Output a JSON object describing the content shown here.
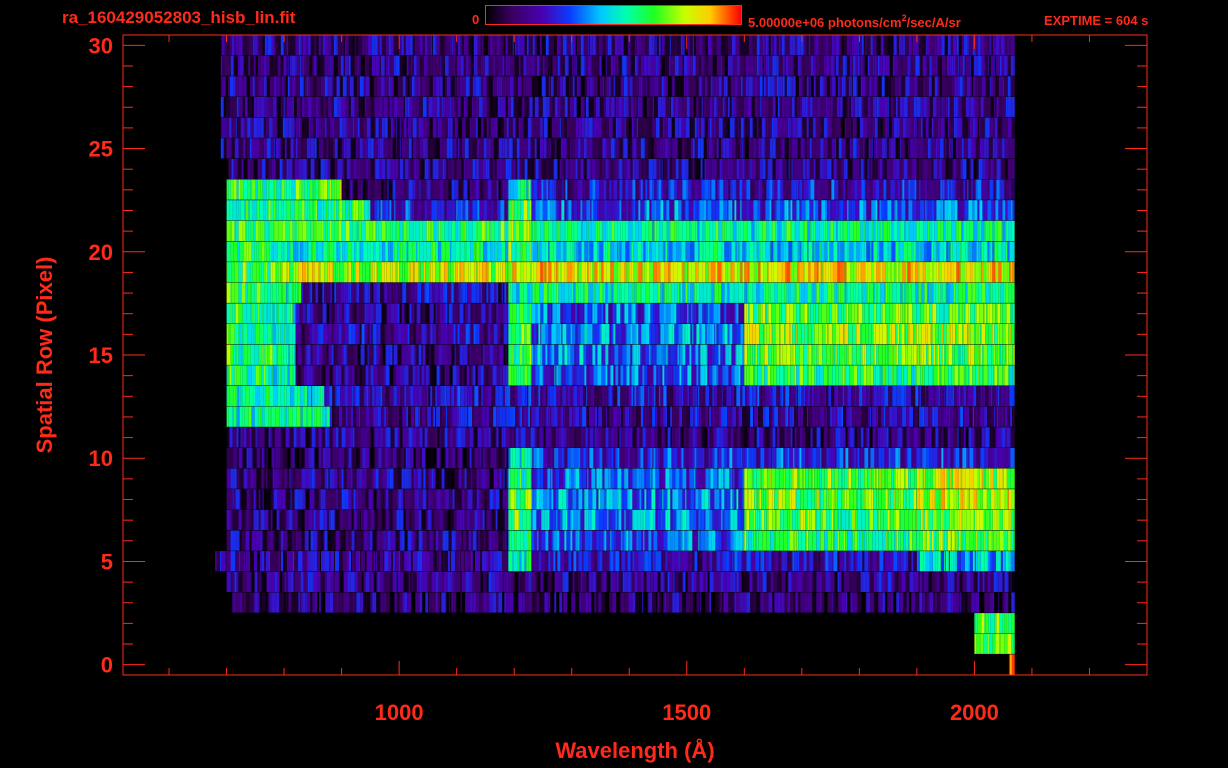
{
  "header": {
    "filename": "ra_160429052803_hisb_lin.fit",
    "colorbar_min": "0",
    "colorbar_max_prefix": "5.00000e+06 photons/cm",
    "colorbar_max_exp": "2",
    "colorbar_max_suffix": "/sec/A/sr",
    "exptime": "EXPTIME = 604 s"
  },
  "colors": {
    "axis": "#ff2a1a",
    "background": "#000000",
    "colormap": [
      "#000000",
      "#3a0060",
      "#4a00b0",
      "#0a3cff",
      "#00c8ff",
      "#00ffb0",
      "#20ff20",
      "#c8ff00",
      "#ffcc00",
      "#ff4000",
      "#ff0000"
    ]
  },
  "chart_data": {
    "type": "heatmap",
    "xlabel": "Wavelength (Å)",
    "ylabel": "Spatial Row (Pixel)",
    "xlim": [
      520,
      2300
    ],
    "ylim": [
      -0.5,
      30.5
    ],
    "xticks": [
      1000,
      1500,
      2000
    ],
    "yticks": [
      0,
      5,
      10,
      15,
      20,
      25,
      30
    ],
    "colorbar": {
      "min": 0,
      "max": 5000000,
      "unit": "photons/cm2/sec/A/sr"
    },
    "rows": [
      {
        "row": 0,
        "segments": [
          [
            2060,
            2070,
            0.9
          ]
        ]
      },
      {
        "row": 1,
        "segments": [
          [
            2000,
            2070,
            0.6
          ]
        ]
      },
      {
        "row": 2,
        "segments": [
          [
            2000,
            2070,
            0.6
          ]
        ]
      },
      {
        "row": 3,
        "segments": [
          [
            710,
            2070,
            0.12
          ]
        ]
      },
      {
        "row": 4,
        "segments": [
          [
            700,
            2070,
            0.15
          ]
        ]
      },
      {
        "row": 5,
        "segments": [
          [
            680,
            1190,
            0.15
          ],
          [
            1190,
            1230,
            0.5
          ],
          [
            1230,
            1900,
            0.2
          ],
          [
            1900,
            2070,
            0.4
          ]
        ]
      },
      {
        "row": 6,
        "segments": [
          [
            700,
            1190,
            0.15
          ],
          [
            1190,
            1230,
            0.55
          ],
          [
            1230,
            1600,
            0.3
          ],
          [
            1600,
            1900,
            0.55
          ],
          [
            1900,
            2070,
            0.6
          ]
        ]
      },
      {
        "row": 7,
        "segments": [
          [
            700,
            1190,
            0.15
          ],
          [
            1190,
            1230,
            0.6
          ],
          [
            1230,
            1600,
            0.35
          ],
          [
            1600,
            1900,
            0.6
          ],
          [
            1900,
            2070,
            0.65
          ]
        ]
      },
      {
        "row": 8,
        "segments": [
          [
            700,
            1190,
            0.15
          ],
          [
            1190,
            1230,
            0.6
          ],
          [
            1230,
            1600,
            0.35
          ],
          [
            1600,
            1900,
            0.62
          ],
          [
            1900,
            2070,
            0.72
          ]
        ]
      },
      {
        "row": 9,
        "segments": [
          [
            700,
            1190,
            0.15
          ],
          [
            1190,
            1230,
            0.55
          ],
          [
            1230,
            1600,
            0.3
          ],
          [
            1600,
            1900,
            0.6
          ],
          [
            1900,
            2070,
            0.68
          ]
        ]
      },
      {
        "row": 10,
        "segments": [
          [
            700,
            1190,
            0.12
          ],
          [
            1190,
            1230,
            0.45
          ],
          [
            1230,
            2070,
            0.25
          ]
        ]
      },
      {
        "row": 11,
        "segments": [
          [
            700,
            900,
            0.15
          ],
          [
            900,
            2070,
            0.15
          ]
        ]
      },
      {
        "row": 12,
        "segments": [
          [
            700,
            880,
            0.5
          ],
          [
            880,
            2070,
            0.18
          ]
        ]
      },
      {
        "row": 13,
        "segments": [
          [
            700,
            800,
            0.5
          ],
          [
            800,
            870,
            0.45
          ],
          [
            870,
            2070,
            0.2
          ]
        ]
      },
      {
        "row": 14,
        "segments": [
          [
            700,
            780,
            0.55
          ],
          [
            780,
            820,
            0.5
          ],
          [
            820,
            1190,
            0.15
          ],
          [
            1190,
            1230,
            0.55
          ],
          [
            1230,
            1600,
            0.3
          ],
          [
            1600,
            2070,
            0.55
          ]
        ]
      },
      {
        "row": 15,
        "segments": [
          [
            700,
            780,
            0.55
          ],
          [
            780,
            820,
            0.5
          ],
          [
            820,
            1190,
            0.15
          ],
          [
            1190,
            1230,
            0.6
          ],
          [
            1230,
            1600,
            0.35
          ],
          [
            1600,
            2070,
            0.62
          ]
        ]
      },
      {
        "row": 16,
        "segments": [
          [
            700,
            780,
            0.55
          ],
          [
            780,
            820,
            0.5
          ],
          [
            820,
            1190,
            0.18
          ],
          [
            1190,
            1230,
            0.6
          ],
          [
            1230,
            1600,
            0.35
          ],
          [
            1600,
            2070,
            0.65
          ]
        ]
      },
      {
        "row": 17,
        "segments": [
          [
            700,
            780,
            0.55
          ],
          [
            780,
            820,
            0.5
          ],
          [
            820,
            1190,
            0.15
          ],
          [
            1190,
            1230,
            0.55
          ],
          [
            1230,
            1600,
            0.3
          ],
          [
            1600,
            2070,
            0.6
          ]
        ]
      },
      {
        "row": 18,
        "segments": [
          [
            700,
            790,
            0.55
          ],
          [
            790,
            830,
            0.5
          ],
          [
            830,
            1190,
            0.18
          ],
          [
            1190,
            1230,
            0.5
          ],
          [
            1230,
            2070,
            0.5
          ]
        ]
      },
      {
        "row": 19,
        "segments": [
          [
            700,
            790,
            0.6
          ],
          [
            790,
            1190,
            0.7
          ],
          [
            1190,
            1230,
            0.72
          ],
          [
            1230,
            2070,
            0.75
          ]
        ]
      },
      {
        "row": 20,
        "segments": [
          [
            700,
            800,
            0.55
          ],
          [
            800,
            1190,
            0.5
          ],
          [
            1190,
            1230,
            0.6
          ],
          [
            1230,
            2070,
            0.45
          ]
        ]
      },
      {
        "row": 21,
        "segments": [
          [
            700,
            820,
            0.55
          ],
          [
            820,
            1190,
            0.55
          ],
          [
            1190,
            1230,
            0.62
          ],
          [
            1230,
            2070,
            0.5
          ]
        ]
      },
      {
        "row": 22,
        "segments": [
          [
            700,
            840,
            0.55
          ],
          [
            840,
            950,
            0.55
          ],
          [
            950,
            1190,
            0.25
          ],
          [
            1190,
            1230,
            0.6
          ],
          [
            1230,
            2070,
            0.3
          ]
        ]
      },
      {
        "row": 23,
        "segments": [
          [
            700,
            840,
            0.55
          ],
          [
            840,
            900,
            0.6
          ],
          [
            900,
            1190,
            0.15
          ],
          [
            1190,
            1230,
            0.5
          ],
          [
            1230,
            2070,
            0.22
          ]
        ]
      },
      {
        "row": 24,
        "segments": [
          [
            700,
            2070,
            0.15
          ]
        ]
      },
      {
        "row": 25,
        "segments": [
          [
            690,
            2070,
            0.15
          ]
        ]
      },
      {
        "row": 26,
        "segments": [
          [
            690,
            2070,
            0.15
          ]
        ]
      },
      {
        "row": 27,
        "segments": [
          [
            690,
            2070,
            0.15
          ]
        ]
      },
      {
        "row": 28,
        "segments": [
          [
            690,
            2070,
            0.15
          ]
        ]
      },
      {
        "row": 29,
        "segments": [
          [
            690,
            2070,
            0.15
          ]
        ]
      },
      {
        "row": 30,
        "segments": [
          [
            690,
            2070,
            0.15
          ]
        ]
      }
    ]
  }
}
